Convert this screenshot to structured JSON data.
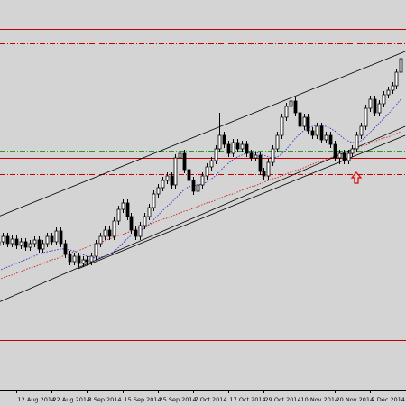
{
  "chart_data": {
    "type": "candlestick",
    "categories": [
      null,
      null,
      null,
      null,
      "12 Aug 2014",
      null,
      null,
      null,
      null,
      null,
      null,
      null,
      "22 Aug 2014",
      null,
      null,
      null,
      null,
      null,
      null,
      null,
      "3 Sep 2014",
      null,
      null,
      null,
      null,
      null,
      null,
      null,
      "15 Sep 2014",
      null,
      null,
      null,
      null,
      null,
      null,
      null,
      "25 Sep 2014",
      null,
      null,
      null,
      null,
      null,
      null,
      null,
      "7 Oct 2014",
      null,
      null,
      null,
      null,
      null,
      null,
      null,
      "17 Oct 2014",
      null,
      null,
      null,
      null,
      null,
      null,
      null,
      "29 Oct 2014",
      null,
      null,
      null,
      null,
      null,
      null,
      null,
      "10 Nov 2014",
      null,
      null,
      null,
      null,
      null,
      null,
      null,
      "20 Nov 2014",
      null,
      null,
      null,
      null,
      null,
      null,
      null,
      "2 Dec 2014",
      null,
      null,
      null,
      null,
      null,
      null,
      null
    ],
    "open": [
      160,
      164,
      170,
      162,
      167,
      160,
      164,
      158,
      162,
      166,
      156,
      162,
      170,
      164,
      176,
      162,
      150,
      142,
      148,
      140,
      144,
      142,
      148,
      162,
      170,
      177,
      170,
      187,
      200,
      207,
      192,
      177,
      170,
      182,
      192,
      202,
      217,
      224,
      232,
      237,
      227,
      257,
      262,
      244,
      232,
      220,
      227,
      237,
      247,
      254,
      267,
      282,
      272,
      262,
      274,
      267,
      272,
      262,
      257,
      260,
      242,
      237,
      252,
      267,
      282,
      302,
      314,
      320,
      307,
      292,
      302,
      287,
      282,
      292,
      277,
      282,
      272,
      257,
      262,
      254,
      262,
      267,
      282,
      292,
      312,
      322,
      307,
      317,
      327,
      332,
      337,
      352
    ],
    "high": [
      168,
      174,
      174,
      171,
      171,
      168,
      168,
      166,
      170,
      170,
      166,
      174,
      174,
      180,
      180,
      166,
      154,
      152,
      152,
      148,
      148,
      152,
      166,
      174,
      181,
      181,
      191,
      204,
      211,
      211,
      196,
      181,
      186,
      196,
      206,
      221,
      228,
      236,
      241,
      241,
      261,
      266,
      266,
      248,
      236,
      231,
      241,
      251,
      258,
      271,
      307,
      286,
      276,
      278,
      278,
      276,
      276,
      266,
      264,
      264,
      246,
      256,
      271,
      286,
      306,
      318,
      332,
      324,
      311,
      306,
      306,
      291,
      296,
      296,
      286,
      286,
      276,
      266,
      266,
      266,
      271,
      286,
      296,
      316,
      326,
      326,
      321,
      331,
      336,
      341,
      356,
      371
    ],
    "low": [
      156,
      160,
      158,
      158,
      156,
      156,
      154,
      154,
      158,
      152,
      152,
      158,
      160,
      160,
      158,
      146,
      138,
      138,
      136,
      136,
      138,
      138,
      144,
      158,
      166,
      166,
      166,
      183,
      196,
      188,
      173,
      166,
      166,
      178,
      188,
      198,
      213,
      220,
      228,
      223,
      223,
      253,
      240,
      228,
      216,
      216,
      223,
      233,
      243,
      250,
      263,
      268,
      258,
      258,
      263,
      263,
      258,
      253,
      253,
      238,
      233,
      233,
      248,
      263,
      278,
      298,
      310,
      303,
      288,
      288,
      283,
      278,
      278,
      273,
      273,
      268,
      253,
      250,
      250,
      250,
      258,
      263,
      278,
      288,
      308,
      303,
      303,
      313,
      323,
      328,
      333,
      348
    ],
    "close": [
      164,
      170,
      162,
      167,
      160,
      164,
      158,
      162,
      166,
      156,
      162,
      170,
      164,
      176,
      162,
      150,
      142,
      148,
      140,
      144,
      142,
      148,
      162,
      170,
      177,
      170,
      187,
      200,
      207,
      192,
      177,
      170,
      182,
      192,
      202,
      217,
      224,
      232,
      237,
      227,
      257,
      262,
      244,
      232,
      220,
      227,
      237,
      247,
      254,
      267,
      282,
      272,
      262,
      274,
      267,
      272,
      262,
      257,
      260,
      242,
      237,
      252,
      267,
      282,
      302,
      314,
      320,
      307,
      292,
      302,
      287,
      282,
      292,
      277,
      282,
      272,
      257,
      262,
      254,
      262,
      267,
      282,
      292,
      312,
      322,
      307,
      317,
      327,
      332,
      337,
      352,
      367
    ],
    "ylim": [
      0,
      432
    ],
    "bull_color": "#ffffff",
    "bear_color": "#000000",
    "wick_color": "#000000",
    "overlays": [
      {
        "color": "#3030d0",
        "style": "dotted",
        "values": [
          132,
          134,
          136,
          138,
          140,
          142,
          144,
          146,
          148,
          150,
          152,
          153,
          154,
          155,
          156,
          156,
          155,
          154,
          152,
          150,
          148,
          147,
          146,
          147,
          148,
          150,
          153,
          157,
          162,
          167,
          171,
          174,
          176,
          179,
          183,
          188,
          193,
          198,
          203,
          207,
          212,
          217,
          222,
          225,
          226,
          227,
          228,
          230,
          233,
          237,
          242,
          247,
          251,
          255,
          258,
          260,
          262,
          263,
          263,
          262,
          260,
          258,
          257,
          258,
          261,
          266,
          272,
          278,
          283,
          287,
          290,
          292,
          293,
          293,
          292,
          290,
          287,
          283,
          279,
          276,
          274,
          274,
          276,
          280,
          285,
          290,
          295,
          300,
          305,
          310,
          316,
          322
        ]
      },
      {
        "color": "#d02020",
        "style": "dotted",
        "values": [
          122,
          124,
          126,
          127,
          129,
          131,
          133,
          135,
          136,
          138,
          140,
          142,
          144,
          145,
          147,
          149,
          151,
          153,
          154,
          156,
          158,
          160,
          162,
          163,
          165,
          167,
          169,
          171,
          172,
          174,
          176,
          178,
          180,
          181,
          183,
          185,
          187,
          189,
          190,
          192,
          194,
          196,
          198,
          199,
          201,
          203,
          205,
          207,
          208,
          210,
          212,
          214,
          216,
          217,
          219,
          221,
          223,
          225,
          226,
          228,
          230,
          232,
          234,
          235,
          237,
          239,
          241,
          243,
          244,
          246,
          248,
          250,
          252,
          253,
          255,
          257,
          259,
          261,
          262,
          264,
          266,
          268,
          270,
          271,
          273,
          275,
          277,
          279,
          280,
          282,
          284,
          286
        ]
      }
    ],
    "levels": [
      {
        "value": 400,
        "color": "#c00000",
        "style": "solid"
      },
      {
        "value": 384,
        "color": "#c00000",
        "style": "dashdot"
      },
      {
        "value": 265,
        "color": "#20a020",
        "style": "dashdot"
      },
      {
        "value": 257,
        "color": "#c00000",
        "style": "solid"
      },
      {
        "value": 239,
        "color": "#c00000",
        "style": "dashdot"
      },
      {
        "value": 55,
        "color": "#c00000",
        "style": "solid"
      }
    ],
    "trendlines": [
      {
        "color": "#000000",
        "points": [
          [
            0,
            192
          ],
          [
            92,
            375
          ]
        ]
      },
      {
        "color": "#000000",
        "points": [
          [
            0,
            97
          ],
          [
            92,
            292
          ]
        ]
      },
      {
        "color": "#000000",
        "points": [
          [
            18,
            134
          ],
          [
            92,
            282
          ]
        ]
      }
    ],
    "background": "#d4d4d4"
  }
}
